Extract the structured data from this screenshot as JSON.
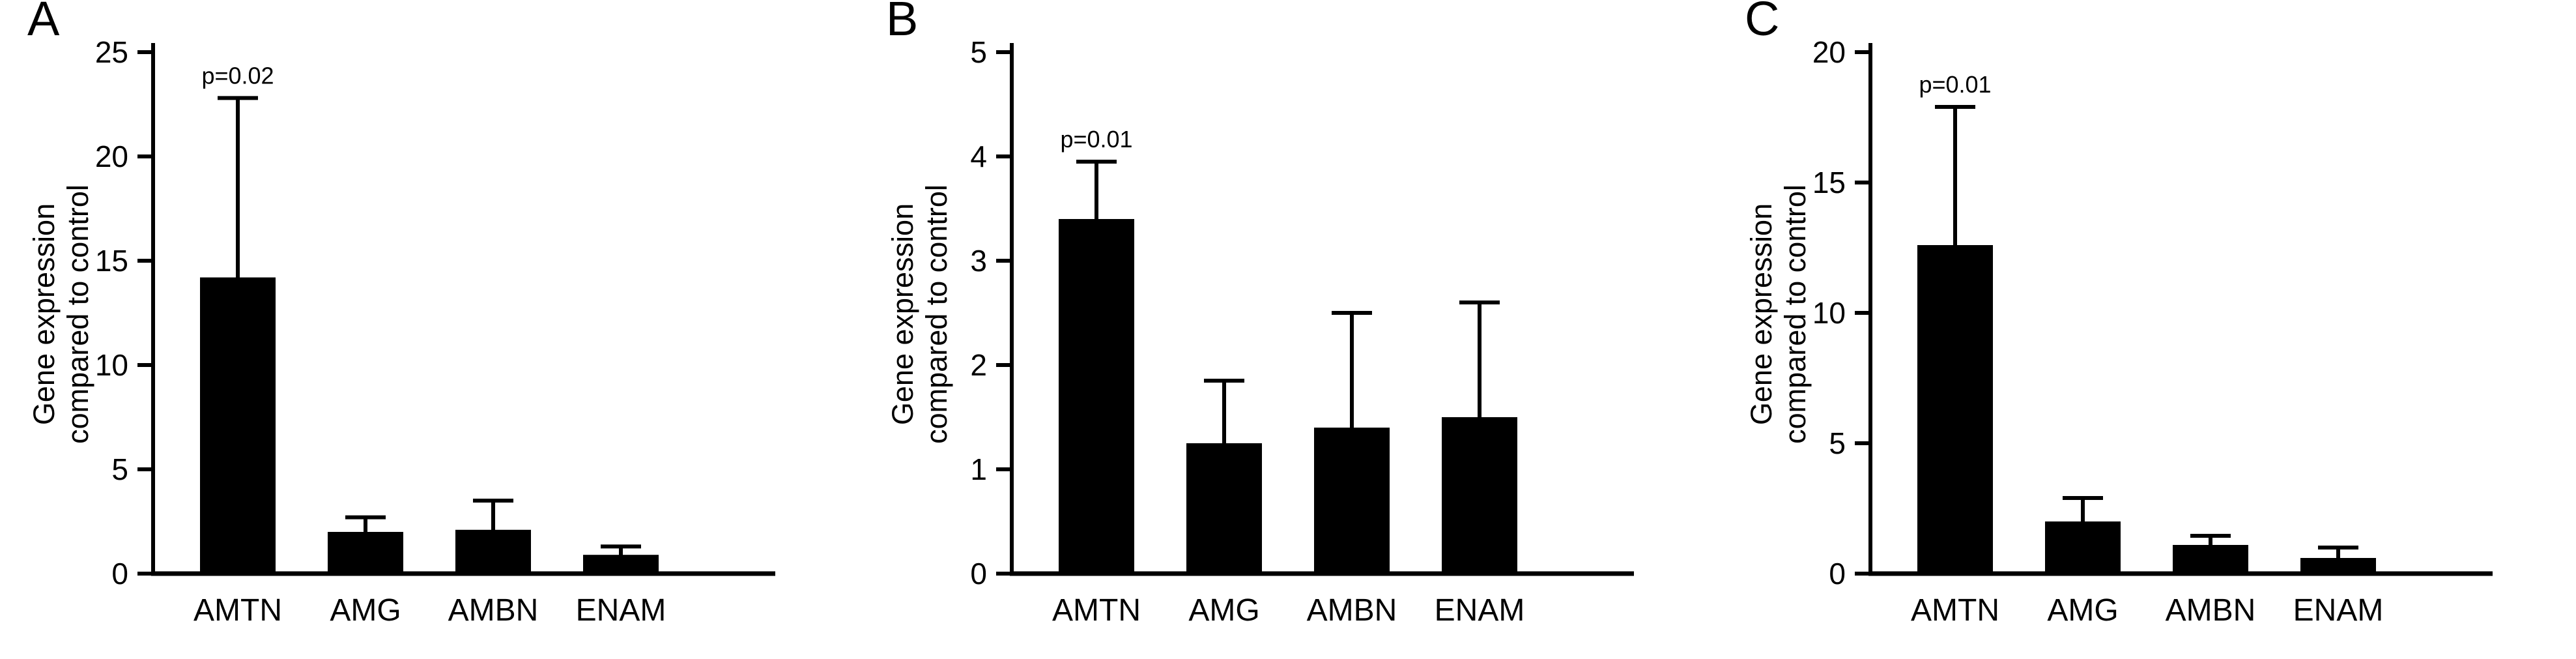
{
  "figure": {
    "background": "#ffffff",
    "foreground": "#000000",
    "panels": [
      {
        "letter": "A"
      },
      {
        "letter": "B"
      },
      {
        "letter": "C"
      }
    ]
  },
  "chart_data": [
    {
      "type": "bar",
      "panel": "A",
      "title": "",
      "xlabel": "",
      "ylabel": "Gene expression\ncompared to control",
      "categories": [
        "AMTN",
        "AMG",
        "AMBN",
        "ENAM"
      ],
      "values": [
        14.2,
        2.0,
        2.1,
        0.9
      ],
      "errors_up": [
        8.6,
        0.7,
        1.4,
        0.4
      ],
      "ylim": [
        0,
        25
      ],
      "yticks": [
        0,
        5,
        10,
        15,
        20,
        25
      ],
      "annotation": {
        "text": "p=0.02",
        "category": "AMTN"
      },
      "grid": false,
      "legend": false,
      "bar_color": "#000000"
    },
    {
      "type": "bar",
      "panel": "B",
      "title": "",
      "xlabel": "",
      "ylabel": "Gene expression\ncompared to control",
      "categories": [
        "AMTN",
        "AMG",
        "AMBN",
        "ENAM"
      ],
      "values": [
        3.4,
        1.25,
        1.4,
        1.5
      ],
      "errors_up": [
        0.55,
        0.6,
        1.1,
        1.1
      ],
      "ylim": [
        0,
        5
      ],
      "yticks": [
        0,
        1,
        2,
        3,
        4,
        5
      ],
      "annotation": {
        "text": "p=0.01",
        "category": "AMTN"
      },
      "grid": false,
      "legend": false,
      "bar_color": "#000000"
    },
    {
      "type": "bar",
      "panel": "C",
      "title": "",
      "xlabel": "",
      "ylabel": "Gene expression\ncompared to control",
      "categories": [
        "AMTN",
        "AMG",
        "AMBN",
        "ENAM"
      ],
      "values": [
        12.6,
        2.0,
        1.1,
        0.6
      ],
      "errors_up": [
        5.3,
        0.9,
        0.35,
        0.4
      ],
      "ylim": [
        0,
        20
      ],
      "yticks": [
        0,
        5,
        10,
        15,
        20
      ],
      "annotation": {
        "text": "p=0.01",
        "category": "AMTN"
      },
      "grid": false,
      "legend": false,
      "bar_color": "#000000"
    }
  ]
}
